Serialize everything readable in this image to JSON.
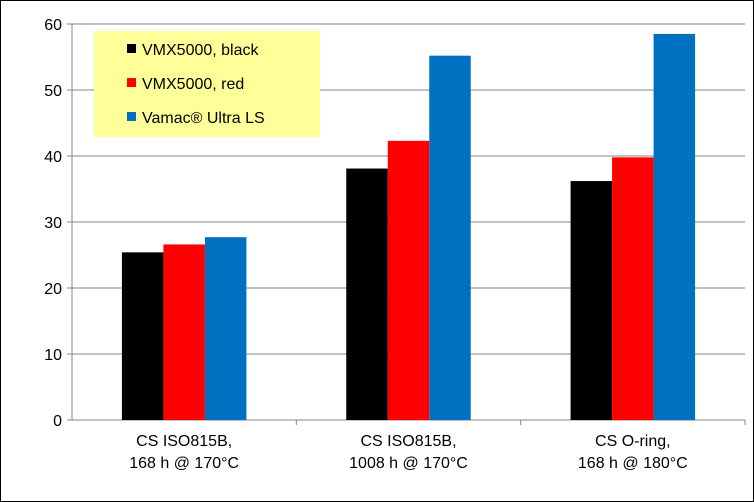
{
  "chart_data": {
    "type": "bar",
    "title": "",
    "xlabel": "",
    "ylabel": "",
    "ylim": [
      0,
      60
    ],
    "yticks": [
      0,
      10,
      20,
      30,
      40,
      50,
      60
    ],
    "grid": true,
    "legend_position": "top-left",
    "categories": [
      [
        "CS ISO815B,",
        "168 h @ 170°C"
      ],
      [
        "CS ISO815B,",
        "1008 h @ 170°C"
      ],
      [
        "CS O-ring,",
        "168 h @ 180°C"
      ]
    ],
    "series": [
      {
        "name": "VMX5000, black",
        "color": "#000000",
        "values": [
          25.4,
          38.1,
          36.2
        ]
      },
      {
        "name": "VMX5000, red",
        "color": "#ff0000",
        "values": [
          26.6,
          42.3,
          39.8
        ]
      },
      {
        "name": "Vamac® Ultra LS",
        "color": "#0070c0",
        "values": [
          27.7,
          55.2,
          58.5
        ]
      }
    ],
    "legend_background": "#ffff99"
  }
}
